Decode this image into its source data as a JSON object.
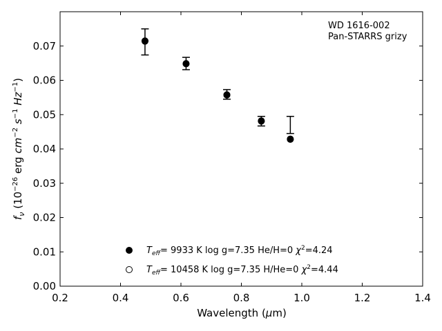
{
  "chart_data": {
    "type": "scatter",
    "title": "",
    "xlabel": "Wavelength (μm)",
    "ylabel": "f_ν (10^-26 erg cm^-2 s^-1 Hz^-1)",
    "xlim": [
      0.2,
      1.4
    ],
    "ylim": [
      0.0,
      0.08
    ],
    "x_ticks": [
      "0.2",
      "0.4",
      "0.6",
      "0.8",
      "1.0",
      "1.2",
      "1.4"
    ],
    "y_ticks": [
      "0.00",
      "0.01",
      "0.02",
      "0.03",
      "0.04",
      "0.05",
      "0.06",
      "0.07"
    ],
    "grid": false,
    "annotation": [
      "WD 1616-002",
      "Pan-STARRS grizy"
    ],
    "observed": {
      "x": [
        0.481,
        0.617,
        0.752,
        0.866,
        0.962
      ],
      "y": [
        0.0712,
        0.0649,
        0.0559,
        0.0481,
        0.047
      ],
      "yerr": [
        0.0038,
        0.0018,
        0.0014,
        0.0014,
        0.0025
      ]
    },
    "series": [
      {
        "marker": "filled-circle",
        "label_parts": {
          "t": "T",
          "sub": "eff",
          "rest": "=  9933 K  log g=7.35  He/H=0  ",
          "chi": "χ",
          "sup": "2",
          "val": "=4.24"
        },
        "x": [
          0.481,
          0.617,
          0.752,
          0.866,
          0.962
        ],
        "y": [
          0.0715,
          0.0649,
          0.0558,
          0.0482,
          0.0429
        ]
      },
      {
        "marker": "open-circle",
        "label_parts": {
          "t": "T",
          "sub": "eff",
          "rest": "= 10458 K  log g=7.35  H/He=0  ",
          "chi": "χ",
          "sup": "2",
          "val": "=4.44"
        },
        "x": [
          0.481,
          0.617,
          0.752,
          0.866,
          0.962
        ],
        "y": [
          0.0714,
          0.0648,
          0.0557,
          0.0481,
          0.0428
        ]
      }
    ],
    "legend_position": "bottom-center"
  }
}
